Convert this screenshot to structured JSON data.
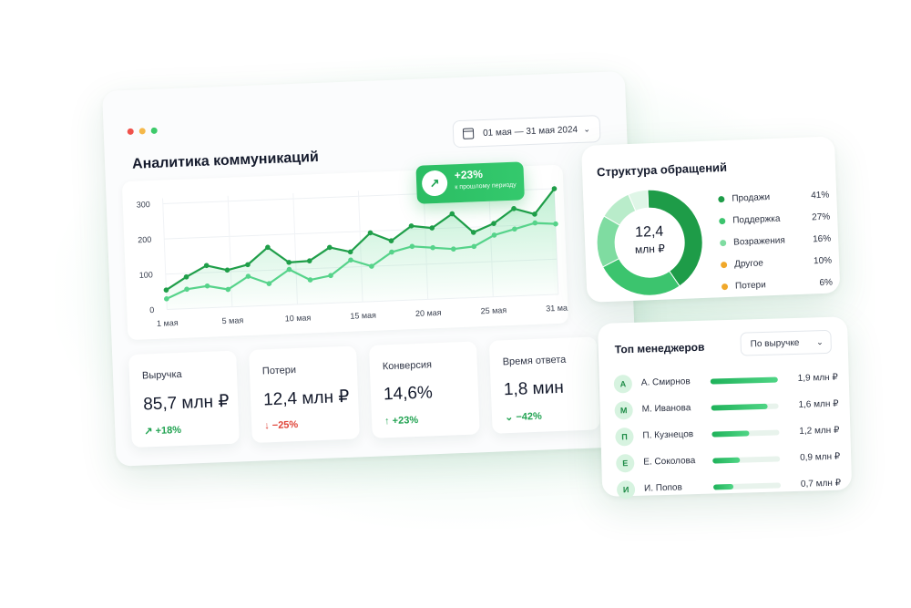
{
  "main": {
    "title": "Аналитика коммуникаций",
    "date_range": "01 мая — 31 мая 2024",
    "tooltip": {
      "value": "+23%",
      "caption": "к прошлому периоду"
    }
  },
  "window_dot_colors": [
    "#f0524c",
    "#f5b84a",
    "#3dca6a"
  ],
  "chart_data": {
    "type": "line",
    "y_ticks": [
      "300",
      "200",
      "100",
      "0"
    ],
    "x_ticks": [
      "1 мая",
      "5 мая",
      "10 мая",
      "15 мая",
      "20 мая",
      "25 мая",
      "31 мая"
    ],
    "ylim": [
      0,
      300
    ],
    "grid": true,
    "series": [
      {
        "color": "#1f9e49",
        "values": [
          55,
          90,
          120,
          105,
          118,
          165,
          120,
          122,
          158,
          143,
          195,
          170,
          210,
          202,
          240,
          185,
          208,
          248,
          230,
          300
        ]
      },
      {
        "color": "#56d38a",
        "values": [
          30,
          55,
          62,
          50,
          85,
          62,
          100,
          68,
          78,
          120,
          100,
          138,
          152,
          146,
          140,
          145,
          175,
          190,
          205,
          200
        ]
      }
    ]
  },
  "kpis": [
    {
      "label": "Выручка",
      "value": "85,7 млн ₽",
      "delta": "↗ +18%",
      "trend": "up"
    },
    {
      "label": "Потери",
      "value": "12,4 млн ₽",
      "delta": "↓ −25%",
      "trend": "down"
    },
    {
      "label": "Конверсия",
      "value": "14,6%",
      "delta": "↑ +23%",
      "trend": "up"
    },
    {
      "label": "Время ответа",
      "value": "1,8 мин",
      "delta": "⌄ −42%",
      "trend": "up"
    }
  ],
  "structure": {
    "title": "Структура обращений",
    "center_value": "12,4",
    "center_unit": "млн ₽",
    "items": [
      {
        "label": "Продажи",
        "pct": "41%",
        "share": 41,
        "color": "#1e9c48"
      },
      {
        "label": "Поддержка",
        "pct": "27%",
        "share": 27,
        "color": "#3cc46e"
      },
      {
        "label": "Возражения",
        "pct": "16%",
        "share": 16,
        "color": "#7fdca1"
      },
      {
        "label": "Другое",
        "pct": "10%",
        "share": 10,
        "color": "#b9ecca"
      },
      {
        "label": "Потери",
        "pct": "6%",
        "share": 6,
        "color": "#dff6e7"
      }
    ],
    "legend_dot_colors": [
      "#1e9c48",
      "#3cc46e",
      "#7fdca1",
      "#f0a82a",
      "#f0a82a"
    ]
  },
  "managers": {
    "title": "Топ менеджеров",
    "sort_select": "По выручке",
    "rows": [
      {
        "initial": "А",
        "name": "А. Смирнов",
        "value": "1,9 млн ₽",
        "ratio": 1.0
      },
      {
        "initial": "М",
        "name": "М. Иванова",
        "value": "1,6 млн ₽",
        "ratio": 0.84
      },
      {
        "initial": "П",
        "name": "П. Кузнецов",
        "value": "1,2 млн ₽",
        "ratio": 0.55
      },
      {
        "initial": "Е",
        "name": "Е. Соколова",
        "value": "0,9 млн ₽",
        "ratio": 0.4
      },
      {
        "initial": "И",
        "name": "И. Попов",
        "value": "0,7 млн ₽",
        "ratio": 0.3
      }
    ]
  }
}
